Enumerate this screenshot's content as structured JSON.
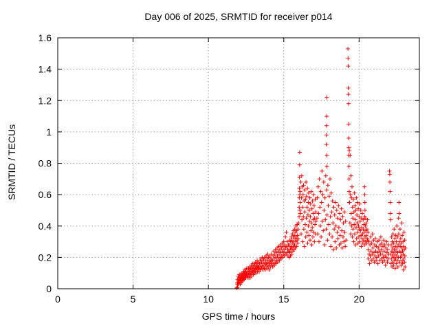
{
  "colors": {
    "marker": "#ff0000",
    "grid": "#9c9c9c",
    "border": "#000000",
    "background": "#ffffff",
    "text": "#000000"
  },
  "chart_data": {
    "type": "scatter",
    "title": "Day 006 of 2025, SRMTID for receiver p014",
    "xlabel": "GPS time / hours",
    "ylabel": "SRMTID / TECUs",
    "xlim": [
      0,
      24
    ],
    "ylim": [
      0,
      1.6
    ],
    "xticks": [
      0,
      5,
      10,
      15,
      20
    ],
    "xtick_labels": [
      "0",
      "5",
      "10",
      "15",
      "20"
    ],
    "yticks": [
      0,
      0.2,
      0.4,
      0.6,
      0.8,
      1.0,
      1.2,
      1.4,
      1.6
    ],
    "ytick_labels": [
      "0",
      "0.2",
      "0.4",
      "0.6",
      "0.8",
      "1",
      "1.2",
      "1.4",
      "1.6"
    ],
    "grid": true,
    "grid_style": "dotted",
    "legend": "none",
    "marker": "plus",
    "marker_size": 7,
    "marker_color": "#ff0000",
    "series_name": "SRMTID",
    "clusters": [
      {
        "x0": 11.88,
        "dx": 0.03,
        "ys": [
          0.005,
          0.03,
          0.06
        ]
      },
      {
        "x0": 11.92,
        "dx": 0.012,
        "ys": [
          0.04,
          0.01,
          0.06,
          0.03,
          0.05,
          0.08,
          0.04,
          0.06,
          0.03,
          0.07,
          0.05,
          0.09,
          0.04,
          0.06,
          0.08,
          0.05,
          0.03,
          0.07,
          0.06,
          0.09,
          0.05,
          0.07,
          0.04,
          0.08,
          0.06,
          0.1,
          0.05,
          0.08,
          0.06,
          0.09,
          0.07,
          0.05,
          0.1,
          0.06,
          0.08,
          0.11,
          0.07,
          0.09,
          0.06,
          0.1,
          0.08,
          0.12,
          0.07,
          0.1,
          0.08,
          0.11,
          0.09,
          0.07,
          0.12,
          0.08,
          0.1,
          0.09,
          0.13,
          0.1,
          0.08
        ]
      },
      {
        "x0": 12.6,
        "dx": 0.015,
        "ys": [
          0.08,
          0.11,
          0.07,
          0.1,
          0.13,
          0.09,
          0.12,
          0.08,
          0.11,
          0.14,
          0.1,
          0.07,
          0.12,
          0.09,
          0.13,
          0.1,
          0.15,
          0.11,
          0.08,
          0.13,
          0.1,
          0.14,
          0.11,
          0.16,
          0.12,
          0.09,
          0.14,
          0.11,
          0.15,
          0.12,
          0.1,
          0.16,
          0.12,
          0.14,
          0.11,
          0.17,
          0.13,
          0.1,
          0.15,
          0.12,
          0.16,
          0.13,
          0.18,
          0.14,
          0.11,
          0.16,
          0.13,
          0.17,
          0.14,
          0.12
        ]
      },
      {
        "x0": 13.35,
        "dx": 0.02,
        "ys": [
          0.14,
          0.11,
          0.16,
          0.13,
          0.18,
          0.12,
          0.15,
          0.19,
          0.13,
          0.17,
          0.14,
          0.2,
          0.15,
          0.12,
          0.18,
          0.14,
          0.19,
          0.16,
          0.13,
          0.2,
          0.16,
          0.12,
          0.18,
          0.15,
          0.21,
          0.16,
          0.13,
          0.19,
          0.15,
          0.22,
          0.17,
          0.14,
          0.2,
          0.16,
          0.12,
          0.18,
          0.15,
          0.21,
          0.17,
          0.14,
          0.19,
          0.16,
          0.22,
          0.18,
          0.15
        ]
      },
      {
        "x0": 14.25,
        "dx": 0.022,
        "ys": [
          0.18,
          0.14,
          0.21,
          0.16,
          0.24,
          0.19,
          0.15,
          0.22,
          0.17,
          0.25,
          0.2,
          0.16,
          0.23,
          0.18,
          0.26,
          0.21,
          0.17,
          0.24,
          0.19,
          0.27,
          0.22,
          0.18,
          0.25,
          0.2,
          0.28,
          0.23,
          0.19,
          0.26,
          0.21,
          0.29,
          0.24,
          0.2,
          0.27,
          0.22,
          0.3,
          0.25,
          0.21,
          0.28,
          0.23,
          0.33,
          0.26,
          0.22,
          0.36,
          0.27,
          0.23,
          0.3,
          0.25,
          0.21,
          0.28,
          0.24
        ]
      },
      {
        "x0": 15.35,
        "dx": 0.016,
        "ys": [
          0.24,
          0.2,
          0.28,
          0.23,
          0.31,
          0.26,
          0.21,
          0.3,
          0.25,
          0.33,
          0.27,
          0.22,
          0.31,
          0.26,
          0.35,
          0.29,
          0.24,
          0.33,
          0.27,
          0.37,
          0.3,
          0.25,
          0.34,
          0.28,
          0.38,
          0.32,
          0.26,
          0.36,
          0.3,
          0.4,
          0.33,
          0.27,
          0.37,
          0.31,
          0.41,
          0.34,
          0.29,
          0.38,
          0.32,
          0.42
        ]
      },
      {
        "x0": 16.02,
        "dx": 0.006,
        "ys": [
          0.46,
          0.52,
          0.58,
          0.64,
          0.71,
          0.79,
          0.87,
          0.6,
          0.5
        ]
      },
      {
        "x0": 16.08,
        "dx": 0.018,
        "ys": [
          0.55,
          0.62,
          0.48,
          0.68,
          0.35,
          0.58,
          0.72,
          0.44,
          0.65,
          0.52,
          0.3,
          0.6,
          0.46,
          0.66,
          0.38,
          0.56,
          0.27,
          0.63,
          0.49,
          0.41,
          0.57,
          0.33,
          0.68,
          0.45,
          0.59,
          0.36,
          0.52,
          0.64,
          0.29,
          0.47,
          0.55,
          0.4,
          0.61,
          0.34,
          0.5,
          0.43,
          0.58,
          0.31,
          0.46,
          0.54,
          0.37,
          0.62,
          0.42,
          0.28,
          0.51,
          0.39,
          0.56,
          0.33,
          0.48,
          0.44,
          0.6,
          0.36,
          0.53,
          0.3,
          0.45,
          0.41,
          0.57,
          0.35,
          0.49,
          0.43
        ]
      },
      {
        "x0": 17.82,
        "dx": 0.008,
        "ys": [
          0.92,
          0.98,
          1.04,
          1.1,
          1.22,
          0.85,
          0.78
        ]
      },
      {
        "x0": 17.2,
        "dx": 0.028,
        "ys": [
          0.45,
          0.58,
          0.35,
          0.65,
          0.48,
          0.3,
          0.7,
          0.52,
          0.4,
          0.62,
          0.33,
          0.55,
          0.75,
          0.43,
          0.6,
          0.37,
          0.68,
          0.5,
          0.28,
          0.58,
          0.44,
          0.72,
          0.38,
          0.63,
          0.47,
          0.31,
          0.66,
          0.53,
          0.41,
          0.59,
          0.35,
          0.7,
          0.46,
          0.27,
          0.61,
          0.49,
          0.33,
          0.56,
          0.42,
          0.25,
          0.52,
          0.38,
          0.47,
          0.3,
          0.55,
          0.4,
          0.26,
          0.5,
          0.36,
          0.45,
          0.32,
          0.53,
          0.39,
          0.28,
          0.48,
          0.34,
          0.44,
          0.29,
          0.51,
          0.37,
          0.26,
          0.46,
          0.33,
          0.42,
          0.3,
          0.49,
          0.36,
          0.27,
          0.43,
          0.31
        ]
      },
      {
        "x0": 19.26,
        "dx": 0.007,
        "ys": [
          1.53,
          1.47,
          1.42,
          1.28,
          1.24,
          1.18,
          1.05,
          0.96,
          0.9,
          0.85,
          0.78,
          0.7,
          0.62,
          0.55
        ]
      },
      {
        "x0": 19.35,
        "dx": 0.018,
        "ys": [
          0.88,
          0.55,
          0.42,
          0.85,
          0.6,
          0.35,
          0.72,
          0.48,
          0.58,
          0.4,
          0.65,
          0.33,
          0.52,
          0.45,
          0.38,
          0.57,
          0.3,
          0.49,
          0.41,
          0.61,
          0.35,
          0.53,
          0.44,
          0.28,
          0.5,
          0.39,
          0.58,
          0.32,
          0.47,
          0.42,
          0.55,
          0.36,
          0.29,
          0.51,
          0.4,
          0.33,
          0.46,
          0.38,
          0.54,
          0.3,
          0.43,
          0.37,
          0.5,
          0.34,
          0.27,
          0.45,
          0.39,
          0.32,
          0.48,
          0.35,
          0.29,
          0.44,
          0.38,
          0.31,
          0.41,
          0.36,
          0.28,
          0.46,
          0.33,
          0.4,
          0.3,
          0.37,
          0.34,
          0.42,
          0.29,
          0.38,
          0.32,
          0.44,
          0.31,
          0.36
        ]
      },
      {
        "x0": 20.36,
        "dx": 0.01,
        "ys": [
          0.65,
          0.6,
          0.55,
          0.5,
          0.45
        ]
      },
      {
        "x0": 20.6,
        "dx": 0.024,
        "ys": [
          0.25,
          0.19,
          0.3,
          0.22,
          0.16,
          0.28,
          0.21,
          0.33,
          0.24,
          0.18,
          0.29,
          0.22,
          0.35,
          0.26,
          0.19,
          0.31,
          0.23,
          0.17,
          0.28,
          0.21,
          0.32,
          0.24,
          0.18,
          0.27,
          0.2,
          0.3,
          0.23,
          0.16,
          0.26,
          0.21,
          0.31,
          0.24,
          0.18,
          0.28,
          0.22,
          0.33,
          0.25,
          0.19,
          0.29,
          0.22,
          0.17,
          0.27,
          0.2,
          0.31,
          0.24,
          0.18,
          0.28,
          0.21,
          0.15,
          0.26,
          0.2,
          0.3,
          0.23,
          0.17,
          0.25,
          0.19,
          0.28,
          0.22
        ]
      },
      {
        "x0": 22.02,
        "dx": 0.012,
        "ys": [
          0.75,
          0.73,
          0.68,
          0.62,
          0.55,
          0.48,
          0.44
        ]
      },
      {
        "x0": 22.1,
        "dx": 0.014,
        "ys": [
          0.22,
          0.16,
          0.28,
          0.19,
          0.33,
          0.24,
          0.14,
          0.3,
          0.21,
          0.26,
          0.17,
          0.35,
          0.23,
          0.15,
          0.29,
          0.2,
          0.38,
          0.25,
          0.18,
          0.32,
          0.22,
          0.13,
          0.27,
          0.19,
          0.34,
          0.24,
          0.16,
          0.3,
          0.21,
          0.4,
          0.26,
          0.18,
          0.33,
          0.23,
          0.14,
          0.28,
          0.2,
          0.45,
          0.35,
          0.55,
          0.48,
          0.3,
          0.24,
          0.17,
          0.38,
          0.27,
          0.2,
          0.32,
          0.23,
          0.15,
          0.29,
          0.21,
          0.42,
          0.26,
          0.18,
          0.34,
          0.24,
          0.16,
          0.3,
          0.22,
          0.12,
          0.27,
          0.19,
          0.36,
          0.25,
          0.17,
          0.31,
          0.21,
          0.14,
          0.26
        ]
      }
    ]
  }
}
